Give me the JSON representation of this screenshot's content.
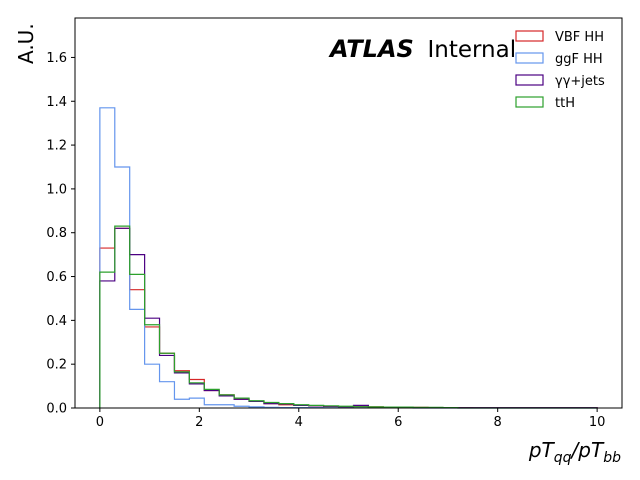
{
  "chart_data": {
    "type": "step-histogram",
    "ylabel": "A.U.",
    "xlabel_var": "pT",
    "xlabel_sub_num": "qq",
    "xlabel_sub_den": "bb",
    "xlabel_slash": "/",
    "annotation_bold": "ATLAS",
    "annotation_rest": "Internal",
    "xlim": [
      -0.5,
      10.5
    ],
    "ylim": [
      0,
      1.78
    ],
    "xticks": [
      0,
      2,
      4,
      6,
      8,
      10
    ],
    "xtick_labels": [
      "0",
      "2",
      "4",
      "6",
      "8",
      "10"
    ],
    "yticks": [
      0,
      0.2,
      0.4,
      0.6,
      0.8,
      1.0,
      1.2,
      1.4,
      1.6
    ],
    "ytick_labels": [
      "0.0",
      "0.2",
      "0.4",
      "0.6",
      "0.8",
      "1.0",
      "1.2",
      "1.4",
      "1.6"
    ],
    "legend_position": "top-right",
    "bin_edges": [
      0,
      0.3,
      0.6,
      0.9,
      1.2,
      1.5,
      1.8,
      2.1,
      2.4,
      2.7,
      3.0,
      3.3,
      3.6,
      3.9,
      4.2,
      4.5,
      4.8,
      5.1,
      5.4,
      5.7,
      6.0,
      6.3,
      6.6,
      6.9,
      7.2,
      7.5,
      7.8,
      8.1,
      8.4,
      8.7,
      9.0,
      9.3,
      9.6,
      10.0
    ],
    "series": [
      {
        "name": "VBF HH",
        "color": "#d62728",
        "values": [
          0.73,
          0.82,
          0.54,
          0.37,
          0.25,
          0.17,
          0.13,
          0.08,
          0.06,
          0.04,
          0.03,
          0.02,
          0.015,
          0.012,
          0.01,
          0.008,
          0.006,
          0.01,
          0.005,
          0.004,
          0.003,
          0.003,
          0.002,
          0.002,
          0.002,
          0.001,
          0.001,
          0.001,
          0.001,
          0.001,
          0.001,
          0.001,
          0.001
        ]
      },
      {
        "name": "ggF HH",
        "color": "#6495ed",
        "values": [
          1.37,
          1.1,
          0.45,
          0.2,
          0.12,
          0.04,
          0.045,
          0.015,
          0.015,
          0.008,
          0.005,
          0.003,
          0.002,
          0.002,
          0.002,
          0.001,
          0.001,
          0.001,
          0.001,
          0.001,
          0.001,
          0.0,
          0.0,
          0.0,
          0.0,
          0.0,
          0.0,
          0.0,
          0.0,
          0.0,
          0.0,
          0.0,
          0.0
        ]
      },
      {
        "name": "γγ+jets",
        "color": "#4b0082",
        "values": [
          0.58,
          0.82,
          0.7,
          0.41,
          0.24,
          0.16,
          0.11,
          0.08,
          0.055,
          0.04,
          0.03,
          0.02,
          0.018,
          0.012,
          0.01,
          0.008,
          0.006,
          0.012,
          0.004,
          0.003,
          0.002,
          0.002,
          0.002,
          0.001,
          0.001,
          0.001,
          0.001,
          0.001,
          0.001,
          0.001,
          0.001,
          0.001,
          0.001
        ]
      },
      {
        "name": "ttH",
        "color": "#2ca02c",
        "values": [
          0.62,
          0.83,
          0.61,
          0.38,
          0.25,
          0.165,
          0.115,
          0.085,
          0.06,
          0.045,
          0.033,
          0.025,
          0.02,
          0.015,
          0.012,
          0.01,
          0.008,
          0.006,
          0.005,
          0.004,
          0.004,
          0.003,
          0.003,
          0.002,
          0.0,
          0.0,
          0.0,
          0.0,
          0.0,
          0.0,
          0.0,
          0.0,
          0.0
        ]
      }
    ]
  }
}
